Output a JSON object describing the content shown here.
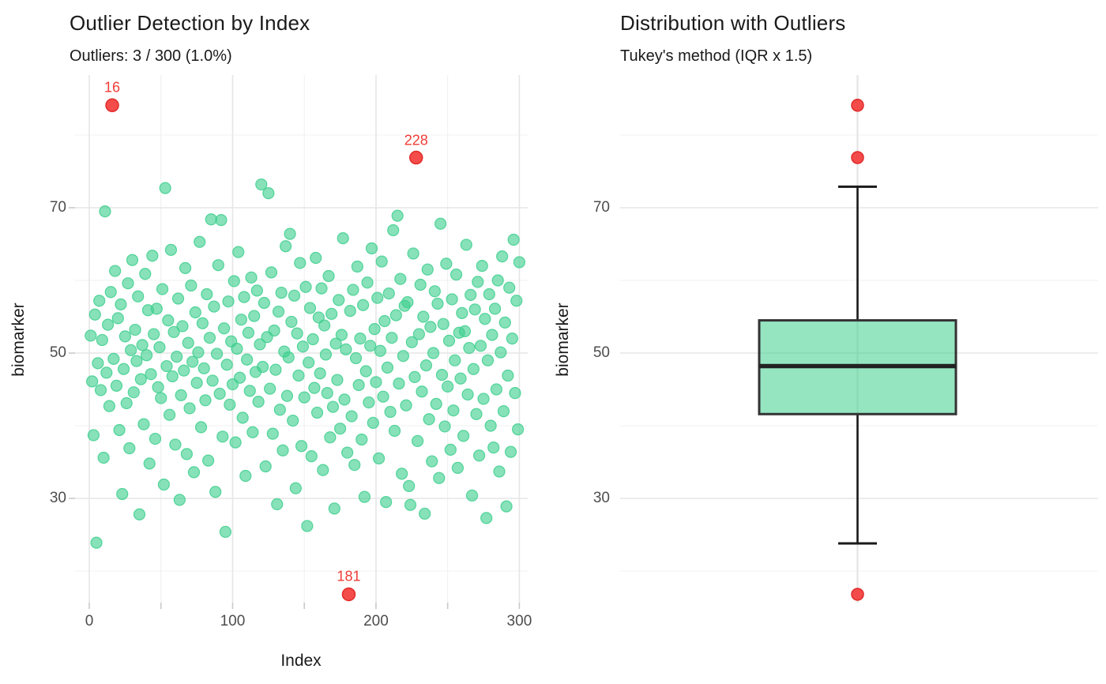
{
  "figure": {
    "background": "#ffffff",
    "colors": {
      "point_green": "#3ECF8E",
      "outlier_red": "#F23D3B",
      "outlier_red_stroke": "#E02C2A",
      "box_fill": "#3ECF8E",
      "box_stroke": "#333333",
      "median_stroke": "#222222",
      "whisker_stroke": "#1a1a1a",
      "grid_major": "#E6E6E6",
      "grid_minor": "#F0F0F0",
      "tick_mark": "#C9C9C9",
      "tick_text": "#4d4d4d",
      "title_text": "#1a1a1a",
      "label_red": "#f03b36"
    }
  },
  "left_plot": {
    "title": "Outlier Detection by Index",
    "subtitle": "Outliers: 3 / 300 (1.0%)",
    "xlabel": "Index",
    "ylabel": "biomarker"
  },
  "right_plot": {
    "title": "Distribution with Outliers",
    "subtitle": "Tukey's method (IQR x 1.5)",
    "ylabel": "biomarker"
  },
  "chart_data": [
    {
      "type": "scatter",
      "title": "Outlier Detection by Index",
      "subtitle": "Outliers: 3 / 300 (1.0%)",
      "xlabel": "Index",
      "ylabel": "biomarker",
      "x_ticks": [
        0,
        100,
        200,
        300
      ],
      "x_minor_ticks": [
        50,
        150,
        250
      ],
      "y_ticks": [
        30,
        50,
        70
      ],
      "y_minor_gridlines": [
        20,
        40,
        60,
        80
      ],
      "xlim": [
        -10,
        306
      ],
      "ylim": [
        15.7,
        88.4
      ],
      "grid": true,
      "n_points": 300,
      "outlier_indices": [
        16,
        181,
        228
      ],
      "outlier_labels": [
        "16",
        "181",
        "228"
      ],
      "values": [
        52.4,
        46.1,
        38.7,
        55.3,
        23.9,
        48.6,
        57.2,
        44.9,
        51.8,
        35.6,
        69.5,
        47.3,
        53.9,
        42.7,
        58.4,
        84.1,
        49.2,
        61.3,
        45.5,
        54.8,
        39.4,
        56.7,
        30.6,
        47.8,
        52.3,
        43.1,
        59.6,
        36.9,
        50.4,
        62.8,
        44.6,
        53.2,
        48.9,
        57.8,
        27.8,
        46.4,
        51.1,
        40.2,
        60.9,
        49.7,
        55.9,
        34.8,
        47.1,
        63.4,
        52.6,
        38.2,
        56.1,
        45.3,
        50.8,
        43.8,
        58.8,
        31.9,
        72.7,
        48.2,
        54.5,
        41.5,
        64.2,
        46.8,
        52.9,
        37.4,
        49.5,
        57.5,
        29.8,
        44.2,
        53.7,
        47.6,
        61.7,
        36.1,
        51.4,
        42.4,
        59.3,
        48.8,
        33.6,
        55.6,
        45.9,
        50.1,
        65.3,
        39.8,
        54.1,
        47.9,
        43.5,
        58.1,
        35.2,
        52.1,
        68.4,
        46.2,
        56.4,
        30.9,
        49.9,
        62.1,
        44.4,
        68.3,
        38.5,
        53.4,
        25.4,
        48.4,
        57.1,
        42.9,
        51.6,
        45.7,
        59.9,
        37.7,
        50.6,
        63.9,
        46.6,
        54.6,
        41.1,
        57.7,
        33.1,
        49.1,
        52.8,
        44.8,
        60.4,
        39.1,
        55.1,
        47.4,
        58.6,
        43.3,
        51.2,
        73.2,
        48.1,
        56.9,
        34.4,
        52.2,
        72.0,
        45.1,
        61.1,
        38.9,
        53.1,
        47.7,
        29.2,
        55.7,
        42.2,
        58.3,
        36.6,
        50.2,
        64.7,
        44.1,
        49.4,
        66.4,
        54.3,
        40.7,
        57.9,
        31.4,
        52.7,
        46.9,
        62.4,
        37.2,
        50.9,
        43.9,
        59.1,
        26.2,
        48.7,
        56.2,
        35.8,
        51.9,
        45.2,
        63.1,
        41.8,
        54.9,
        47.2,
        58.9,
        33.9,
        53.8,
        49.8,
        44.5,
        60.6,
        38.4,
        55.4,
        42.6,
        28.6,
        51.3,
        46.3,
        57.3,
        39.6,
        52.5,
        65.8,
        43.6,
        50.5,
        36.3,
        16.8,
        55.8,
        41.3,
        58.7,
        34.6,
        49.3,
        61.9,
        45.6,
        52.0,
        38.1,
        56.6,
        30.2,
        47.5,
        59.7,
        43.2,
        51.0,
        64.4,
        40.4,
        53.3,
        46.0,
        57.6,
        35.5,
        50.3,
        62.6,
        44.0,
        54.4,
        29.5,
        48.0,
        58.2,
        41.9,
        52.1,
        66.9,
        39.3,
        55.2,
        68.9,
        45.8,
        60.2,
        33.4,
        49.6,
        56.5,
        42.8,
        57.0,
        31.7,
        29.1,
        51.5,
        63.7,
        46.7,
        76.9,
        37.9,
        52.6,
        59.4,
        44.7,
        55.0,
        27.9,
        48.3,
        61.5,
        40.9,
        53.6,
        35.1,
        50.0,
        58.5,
        43.0,
        56.8,
        32.8,
        67.8,
        47.0,
        54.0,
        39.9,
        62.3,
        45.4,
        51.7,
        36.7,
        57.4,
        42.1,
        49.0,
        60.8,
        34.2,
        52.8,
        46.5,
        55.5,
        38.6,
        53.0,
        64.9,
        44.3,
        50.7,
        58.0,
        30.4,
        47.8,
        56.0,
        41.6,
        59.8,
        35.9,
        51.0,
        62.0,
        43.7,
        54.7,
        27.3,
        49.0,
        58.1,
        40.0,
        52.5,
        37.0,
        56.1,
        45.0,
        60.0,
        33.7,
        50.1,
        63.3,
        42.0,
        54.2,
        28.9,
        46.9,
        59.0,
        36.4,
        52.0,
        65.6,
        44.5,
        57.2,
        39.5,
        62.5
      ]
    },
    {
      "type": "box",
      "title": "Distribution with Outliers",
      "subtitle": "Tukey's method (IQR x 1.5)",
      "ylabel": "biomarker",
      "y_ticks": [
        30,
        50,
        70
      ],
      "y_minor_gridlines": [
        20,
        40,
        60,
        80
      ],
      "ylim": [
        15.7,
        88.4
      ],
      "grid": true,
      "stats": {
        "whisker_low": 23.8,
        "q1": 41.6,
        "median": 48.2,
        "q3": 54.5,
        "whisker_high": 72.9
      },
      "outlier_values": [
        84.1,
        76.9,
        16.8
      ]
    }
  ]
}
